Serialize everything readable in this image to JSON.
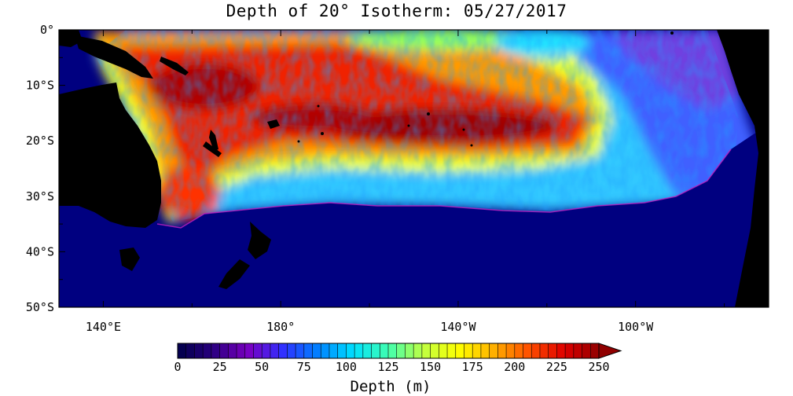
{
  "title": "Depth of 20° Isotherm: 05/27/2017",
  "map": {
    "lon_range": [
      130,
      290
    ],
    "lat_range": [
      -50,
      0
    ],
    "lat_ticks": [
      {
        "lat": 0,
        "label": "0°"
      },
      {
        "lat": -10,
        "label": "10°S"
      },
      {
        "lat": -20,
        "label": "20°S"
      },
      {
        "lat": -30,
        "label": "30°S"
      },
      {
        "lat": -40,
        "label": "40°S"
      },
      {
        "lat": -50,
        "label": "50°S"
      }
    ],
    "lon_ticks": [
      {
        "lon": 140,
        "label": "140°E"
      },
      {
        "lon": 180,
        "label": "180°"
      },
      {
        "lon": 220,
        "label": "140°W"
      },
      {
        "lon": 260,
        "label": "100°W"
      }
    ],
    "colors": {
      "land": "#000000",
      "no_data": "#000080"
    }
  },
  "colorbar": {
    "title": "Depth (m)",
    "min": 0,
    "max": 250,
    "step": 5,
    "tick_labels": [
      "0",
      "25",
      "50",
      "75",
      "100",
      "125",
      "150",
      "175",
      "200",
      "225",
      "250"
    ],
    "colors": [
      "#00004a",
      "#2a0080",
      "#7a00c0",
      "#3030ff",
      "#0080ff",
      "#00e0ff",
      "#40ffb0",
      "#c0ff40",
      "#ffff00",
      "#ffb000",
      "#ff5000",
      "#e00000",
      "#900000"
    ]
  }
}
